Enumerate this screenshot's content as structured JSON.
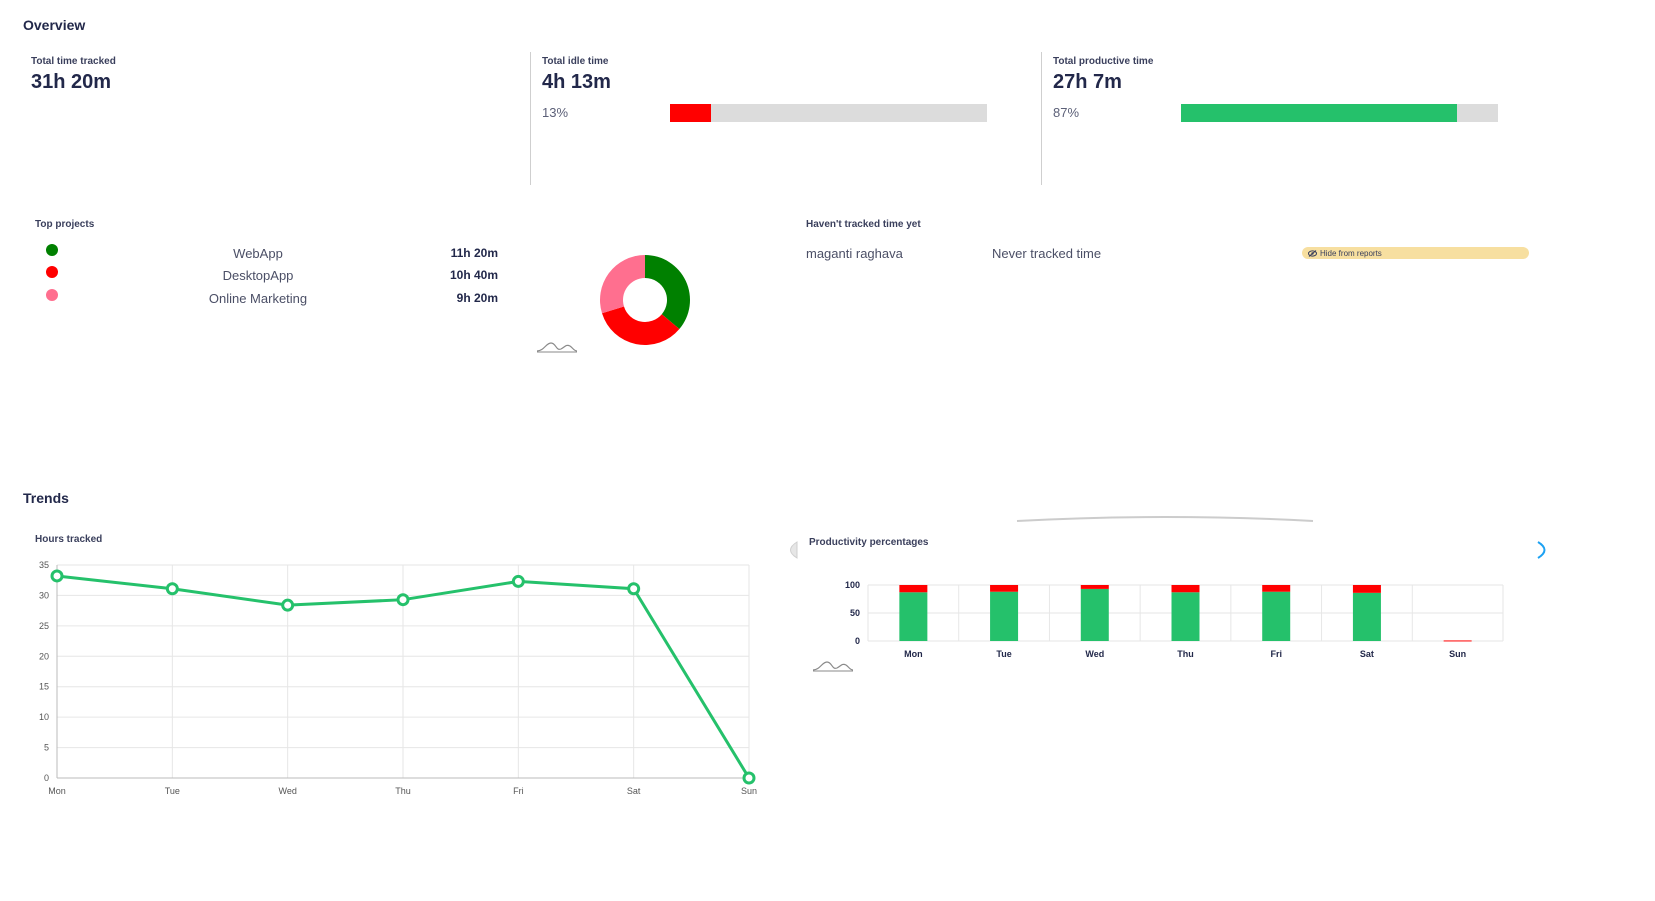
{
  "overview": {
    "title": "Overview",
    "total_time": {
      "label": "Total time tracked",
      "value": "31h 20m"
    },
    "idle_time": {
      "label": "Total idle time",
      "value": "4h 13m",
      "percent_label": "13%",
      "percent": 13,
      "color": "#ff0000"
    },
    "productive_time": {
      "label": "Total productive time",
      "value": "27h 7m",
      "percent_label": "87%",
      "percent": 87,
      "color": "#25c16b"
    }
  },
  "top_projects": {
    "title": "Top projects",
    "items": [
      {
        "name": "WebApp",
        "time": "11h 20m",
        "hours": 11.33,
        "color": "#008000"
      },
      {
        "name": "DesktopApp",
        "time": "10h 40m",
        "hours": 10.67,
        "color": "#ff0000"
      },
      {
        "name": "Online Marketing",
        "time": "9h 20m",
        "hours": 9.33,
        "color": "#ff6f8f"
      }
    ]
  },
  "not_tracked": {
    "title": "Haven't tracked time yet",
    "users": [
      {
        "name": "maganti raghava",
        "status": "Never tracked time",
        "action": "Hide from reports"
      }
    ]
  },
  "trends": {
    "title": "Trends",
    "hours_chart_title": "Hours tracked",
    "productivity_chart_title": "Productivity percentages"
  },
  "chart_data": [
    {
      "type": "line",
      "title": "Hours tracked",
      "categories": [
        "Mon",
        "Tue",
        "Wed",
        "Thu",
        "Fri",
        "Sat",
        "Sun"
      ],
      "values": [
        33.2,
        31.1,
        28.4,
        29.3,
        32.3,
        31.1,
        0
      ],
      "ylim": [
        0,
        35
      ],
      "yticks": [
        0,
        5,
        10,
        15,
        20,
        25,
        30,
        35
      ],
      "color": "#25c16b",
      "grid": true
    },
    {
      "type": "bar",
      "title": "Productivity percentages",
      "categories": [
        "Mon",
        "Tue",
        "Wed",
        "Thu",
        "Fri",
        "Sat",
        "Sun"
      ],
      "series": [
        {
          "values": [
            87,
            88,
            93,
            87,
            88,
            86,
            0
          ],
          "color": "#25c16b"
        },
        {
          "values": [
            13,
            12,
            7,
            13,
            12,
            14,
            1
          ],
          "color": "#ff0000"
        }
      ],
      "ylim": [
        0,
        100
      ],
      "yticks": [
        0,
        50,
        100
      ],
      "stacked": true,
      "grid": true
    }
  ]
}
